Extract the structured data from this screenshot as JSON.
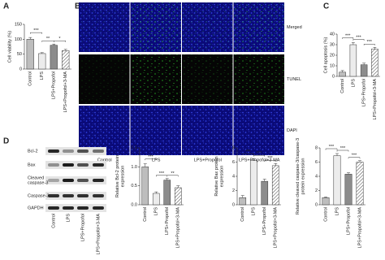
{
  "panel_labels": [
    "A",
    "B",
    "C",
    "D"
  ],
  "microscopy": {
    "columns": [
      "Control",
      "LPS",
      "LPS+Propofol",
      "LPS+Propofol+3-MA"
    ],
    "rows": [
      "Merged",
      "TUNEL",
      "DAPI"
    ]
  },
  "western_blot": {
    "bands": [
      [
        "Bcl-2"
      ],
      [
        "Bax"
      ],
      [
        "Cleaved",
        "caspase-3"
      ],
      [
        "Caspase-3"
      ],
      [
        "GAPDH"
      ]
    ],
    "lanes": [
      "Control",
      "LPS",
      "LPS+Propofol",
      "LPS+Propofol+3-MA"
    ]
  },
  "chart_data": [
    {
      "type": "bar",
      "y_label": [
        "Cell viability (%)"
      ],
      "categories": [
        "Control",
        "LPS",
        "LPS+Propofol",
        "LPS+Propofol+3-MA"
      ],
      "values": [
        100,
        52,
        80,
        62
      ],
      "errors": [
        6,
        3,
        4,
        4
      ],
      "annotations": [
        "***",
        "**",
        "*"
      ],
      "ylim": [
        0,
        150
      ],
      "yticks": [
        0,
        50,
        100,
        150
      ],
      "colors": [
        "#bdbdbd",
        "#ececec",
        "#8c8c8c",
        "#ffffff"
      ],
      "hatched": [
        false,
        false,
        false,
        true
      ]
    },
    {
      "type": "bar",
      "y_label": [
        "Cell apoptosis (%)"
      ],
      "categories": [
        "Control",
        "LPS",
        "LPS+Propofol",
        "LPS+Propofol+3-MA"
      ],
      "values": [
        4,
        30,
        11,
        26
      ],
      "errors": [
        1.5,
        2,
        1.5,
        1.5
      ],
      "annotations": [
        "***",
        "***",
        "***"
      ],
      "ylim": [
        0,
        40
      ],
      "yticks": [
        0,
        10,
        20,
        30,
        40
      ],
      "colors": [
        "#bdbdbd",
        "#ececec",
        "#8c8c8c",
        "#ffffff"
      ],
      "hatched": [
        false,
        false,
        false,
        true
      ]
    },
    {
      "type": "bar",
      "y_label": [
        "Relative Bcl-2 protein",
        "expression"
      ],
      "categories": [
        "Control",
        "LPS",
        "LPS+Propofol",
        "LPS+Propofol+3-MA"
      ],
      "values": [
        1.0,
        0.3,
        0.65,
        0.45
      ],
      "errors": [
        0.08,
        0.04,
        0.04,
        0.05
      ],
      "annotations": [
        "***",
        "***",
        "**"
      ],
      "ylim": [
        0,
        1.5
      ],
      "yticks": [
        {
          "value": 0,
          "label": "0.0"
        },
        {
          "value": 0.5,
          "label": "0.5"
        },
        {
          "value": 1,
          "label": "1.0"
        },
        {
          "value": 1.5,
          "label": "1.5"
        }
      ],
      "colors": [
        "#bdbdbd",
        "#ececec",
        "#8c8c8c",
        "#ffffff"
      ],
      "hatched": [
        false,
        false,
        false,
        true
      ]
    },
    {
      "type": "bar",
      "y_label": [
        "Relative Bax protein",
        "expression"
      ],
      "categories": [
        "Control",
        "LPS",
        "LPS+Propofol",
        "LPS+Propofol+3-MA"
      ],
      "values": [
        1,
        6.2,
        3.3,
        5.5
      ],
      "errors": [
        0.3,
        0.3,
        0.3,
        0.3
      ],
      "annotations": [
        "***",
        "***",
        "***"
      ],
      "ylim": [
        0,
        8
      ],
      "yticks": [
        0,
        2,
        4,
        6,
        8
      ],
      "colors": [
        "#bdbdbd",
        "#ececec",
        "#8c8c8c",
        "#ffffff"
      ],
      "hatched": [
        false,
        false,
        false,
        true
      ]
    },
    {
      "type": "bar",
      "y_label": [
        "Relative cleaved caspase-3/caspase-3",
        "protein expression"
      ],
      "categories": [
        "Control",
        "LPS",
        "LPS+Propofol",
        "LPS+Propofol+3-MA"
      ],
      "values": [
        1,
        6.9,
        4.3,
        6.0
      ],
      "errors": [
        0.1,
        0.3,
        0.2,
        0.2
      ],
      "annotations": [
        "***",
        "***",
        "***"
      ],
      "ylim": [
        0,
        8
      ],
      "yticks": [
        0,
        2,
        4,
        6,
        8
      ],
      "colors": [
        "#bdbdbd",
        "#ececec",
        "#8c8c8c",
        "#ffffff"
      ],
      "hatched": [
        false,
        false,
        false,
        true
      ]
    }
  ]
}
